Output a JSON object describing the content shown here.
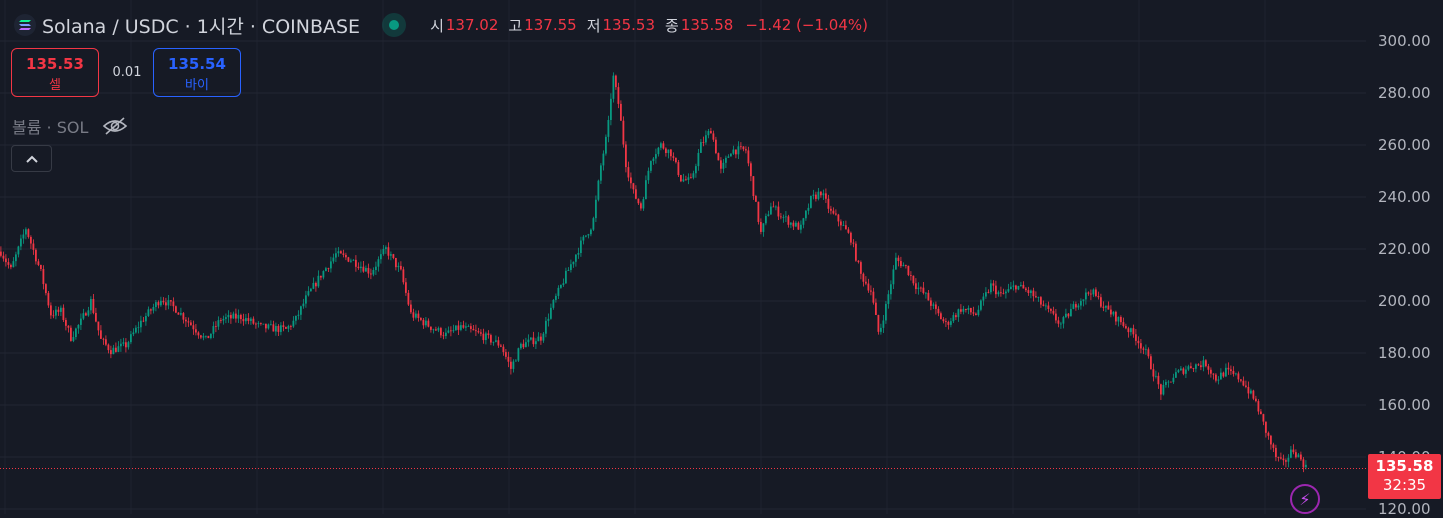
{
  "header": {
    "title": "Solana / USDC · 1시간 · COINBASE",
    "ohlc": {
      "open_label": "시",
      "open": "137.02",
      "high_label": "고",
      "high": "137.55",
      "low_label": "저",
      "low": "135.53",
      "close_label": "종",
      "close": "135.58",
      "change": "−1.42 (−1.04%)"
    }
  },
  "trade": {
    "sell_price": "135.53",
    "sell_label": "셀",
    "spread": "0.01",
    "buy_price": "135.54",
    "buy_label": "바이"
  },
  "volume_label": "볼륨 · SOL",
  "last_price": {
    "price": "135.58",
    "countdown": "32:35"
  },
  "icons": [
    "solana-logo-icon",
    "market-open-icon",
    "eye-off-icon",
    "chevron-up-icon",
    "lightning-icon"
  ],
  "colors": {
    "background": "#161a25",
    "up": "#089981",
    "down": "#f23645",
    "buy": "#2962ff",
    "alert": "#9c27b0"
  },
  "chart_data": {
    "type": "candlestick",
    "y_ticks": [
      "300.00",
      "280.00",
      "260.00",
      "240.00",
      "220.00",
      "200.00",
      "180.00",
      "160.00",
      "140.00",
      "120.00"
    ],
    "ylim": [
      120,
      300
    ],
    "grid": true,
    "last_price_line": 135.58,
    "close_path": [
      [
        0,
        219
      ],
      [
        10,
        212
      ],
      [
        25,
        228
      ],
      [
        40,
        211
      ],
      [
        50,
        195
      ],
      [
        60,
        196
      ],
      [
        70,
        186
      ],
      [
        80,
        192
      ],
      [
        90,
        200
      ],
      [
        100,
        185
      ],
      [
        110,
        181
      ],
      [
        125,
        183
      ],
      [
        140,
        192
      ],
      [
        160,
        201
      ],
      [
        175,
        197
      ],
      [
        190,
        191
      ],
      [
        205,
        185
      ],
      [
        220,
        193
      ],
      [
        240,
        194
      ],
      [
        260,
        190
      ],
      [
        285,
        189
      ],
      [
        295,
        193
      ],
      [
        305,
        201
      ],
      [
        320,
        210
      ],
      [
        335,
        218
      ],
      [
        350,
        216
      ],
      [
        370,
        211
      ],
      [
        385,
        220
      ],
      [
        400,
        211
      ],
      [
        410,
        195
      ],
      [
        430,
        190
      ],
      [
        445,
        187
      ],
      [
        460,
        190
      ],
      [
        480,
        187
      ],
      [
        500,
        183
      ],
      [
        510,
        174
      ],
      [
        520,
        183
      ],
      [
        540,
        186
      ],
      [
        550,
        197
      ],
      [
        565,
        210
      ],
      [
        580,
        222
      ],
      [
        592,
        230
      ],
      [
        600,
        252
      ],
      [
        607,
        266
      ],
      [
        612,
        287
      ],
      [
        618,
        275
      ],
      [
        625,
        253
      ],
      [
        632,
        242
      ],
      [
        640,
        236
      ],
      [
        650,
        255
      ],
      [
        660,
        260
      ],
      [
        670,
        257
      ],
      [
        680,
        247
      ],
      [
        690,
        246
      ],
      [
        700,
        260
      ],
      [
        710,
        266
      ],
      [
        720,
        250
      ],
      [
        730,
        258
      ],
      [
        745,
        258
      ],
      [
        752,
        243
      ],
      [
        760,
        226
      ],
      [
        770,
        237
      ],
      [
        780,
        233
      ],
      [
        790,
        230
      ],
      [
        800,
        228
      ],
      [
        810,
        239
      ],
      [
        820,
        242
      ],
      [
        830,
        234
      ],
      [
        840,
        230
      ],
      [
        850,
        224
      ],
      [
        860,
        210
      ],
      [
        870,
        204
      ],
      [
        878,
        187
      ],
      [
        885,
        198
      ],
      [
        895,
        216
      ],
      [
        905,
        213
      ],
      [
        915,
        206
      ],
      [
        925,
        202
      ],
      [
        935,
        196
      ],
      [
        945,
        191
      ],
      [
        960,
        197
      ],
      [
        975,
        195
      ],
      [
        990,
        206
      ],
      [
        1000,
        202
      ],
      [
        1015,
        206
      ],
      [
        1030,
        203
      ],
      [
        1045,
        197
      ],
      [
        1060,
        191
      ],
      [
        1075,
        199
      ],
      [
        1090,
        204
      ],
      [
        1105,
        197
      ],
      [
        1120,
        192
      ],
      [
        1135,
        186
      ],
      [
        1145,
        180
      ],
      [
        1160,
        165
      ],
      [
        1175,
        172
      ],
      [
        1190,
        175
      ],
      [
        1205,
        176
      ],
      [
        1215,
        170
      ],
      [
        1225,
        173
      ],
      [
        1240,
        170
      ],
      [
        1255,
        161
      ],
      [
        1265,
        150
      ],
      [
        1275,
        140
      ],
      [
        1282,
        137
      ],
      [
        1292,
        143
      ],
      [
        1300,
        139
      ],
      [
        1305,
        136
      ]
    ]
  }
}
